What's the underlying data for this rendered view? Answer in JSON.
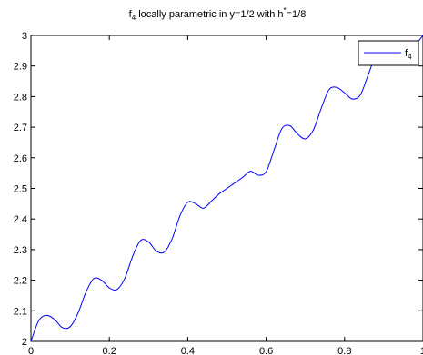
{
  "chart_data": {
    "type": "line",
    "title": {
      "prefix": "f",
      "prefix_sub": "4",
      "middle": " locally parametric in y=1/2 with h",
      "sup": "*",
      "suffix": "=1/8"
    },
    "xlabel": "",
    "ylabel": "",
    "xlim": [
      0,
      1
    ],
    "ylim": [
      2,
      3
    ],
    "x_ticks": [
      {
        "value": 0,
        "label": "0"
      },
      {
        "value": 0.2,
        "label": "0.2"
      },
      {
        "value": 0.4,
        "label": "0.4"
      },
      {
        "value": 0.6,
        "label": "0.6"
      },
      {
        "value": 0.8,
        "label": "0.8"
      },
      {
        "value": 1,
        "label": "1"
      }
    ],
    "y_ticks": [
      {
        "value": 2,
        "label": "2"
      },
      {
        "value": 2.1,
        "label": "2.1"
      },
      {
        "value": 2.2,
        "label": "2.2"
      },
      {
        "value": 2.3,
        "label": "2.3"
      },
      {
        "value": 2.4,
        "label": "2.4"
      },
      {
        "value": 2.5,
        "label": "2.5"
      },
      {
        "value": 2.6,
        "label": "2.6"
      },
      {
        "value": 2.7,
        "label": "2.7"
      },
      {
        "value": 2.8,
        "label": "2.8"
      },
      {
        "value": 2.9,
        "label": "2.9"
      },
      {
        "value": 3,
        "label": "3"
      }
    ],
    "grid": false,
    "legend_position": "top-right",
    "series": [
      {
        "name": "f",
        "name_sub": "4",
        "color": "#0000ff",
        "x": [
          0.0,
          0.02,
          0.04,
          0.06,
          0.08,
          0.1,
          0.12,
          0.14,
          0.16,
          0.18,
          0.2,
          0.22,
          0.24,
          0.26,
          0.28,
          0.3,
          0.32,
          0.34,
          0.36,
          0.38,
          0.4,
          0.42,
          0.44,
          0.46,
          0.48,
          0.5,
          0.52,
          0.54,
          0.56,
          0.58,
          0.6,
          0.62,
          0.64,
          0.66,
          0.68,
          0.7,
          0.72,
          0.74,
          0.76,
          0.78,
          0.8,
          0.82,
          0.84,
          0.86,
          0.88,
          0.9,
          0.92,
          0.94,
          0.96,
          0.98,
          1.0
        ],
        "y": [
          2.0,
          2.068,
          2.085,
          2.072,
          2.045,
          2.048,
          2.092,
          2.16,
          2.205,
          2.2,
          2.175,
          2.17,
          2.208,
          2.28,
          2.33,
          2.325,
          2.295,
          2.292,
          2.335,
          2.41,
          2.455,
          2.45,
          2.435,
          2.458,
          2.482,
          2.5,
          2.518,
          2.536,
          2.556,
          2.543,
          2.555,
          2.625,
          2.695,
          2.705,
          2.678,
          2.662,
          2.69,
          2.76,
          2.822,
          2.83,
          2.812,
          2.792,
          2.805,
          2.87,
          2.935,
          2.955,
          2.935,
          2.925,
          2.942,
          2.968,
          3.0
        ]
      }
    ]
  }
}
